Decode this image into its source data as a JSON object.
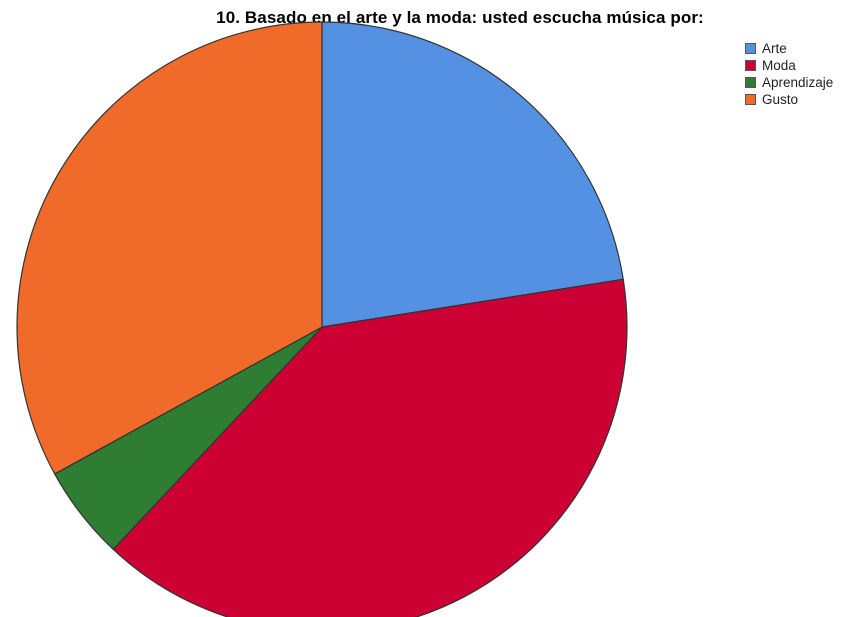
{
  "chart_data": {
    "type": "pie",
    "title": "10. Basado en el arte y la moda: usted escucha música por:",
    "categories": [
      "Arte",
      "Moda",
      "Aprendizaje",
      "Gusto"
    ],
    "values": [
      22.5,
      39.5,
      5.0,
      33.0
    ],
    "colors": [
      "#5591e2",
      "#cc0033",
      "#2e7d32",
      "#f06a2a"
    ],
    "legend_position": "top-right",
    "start_angle_deg": 0,
    "direction": "clockwise"
  }
}
